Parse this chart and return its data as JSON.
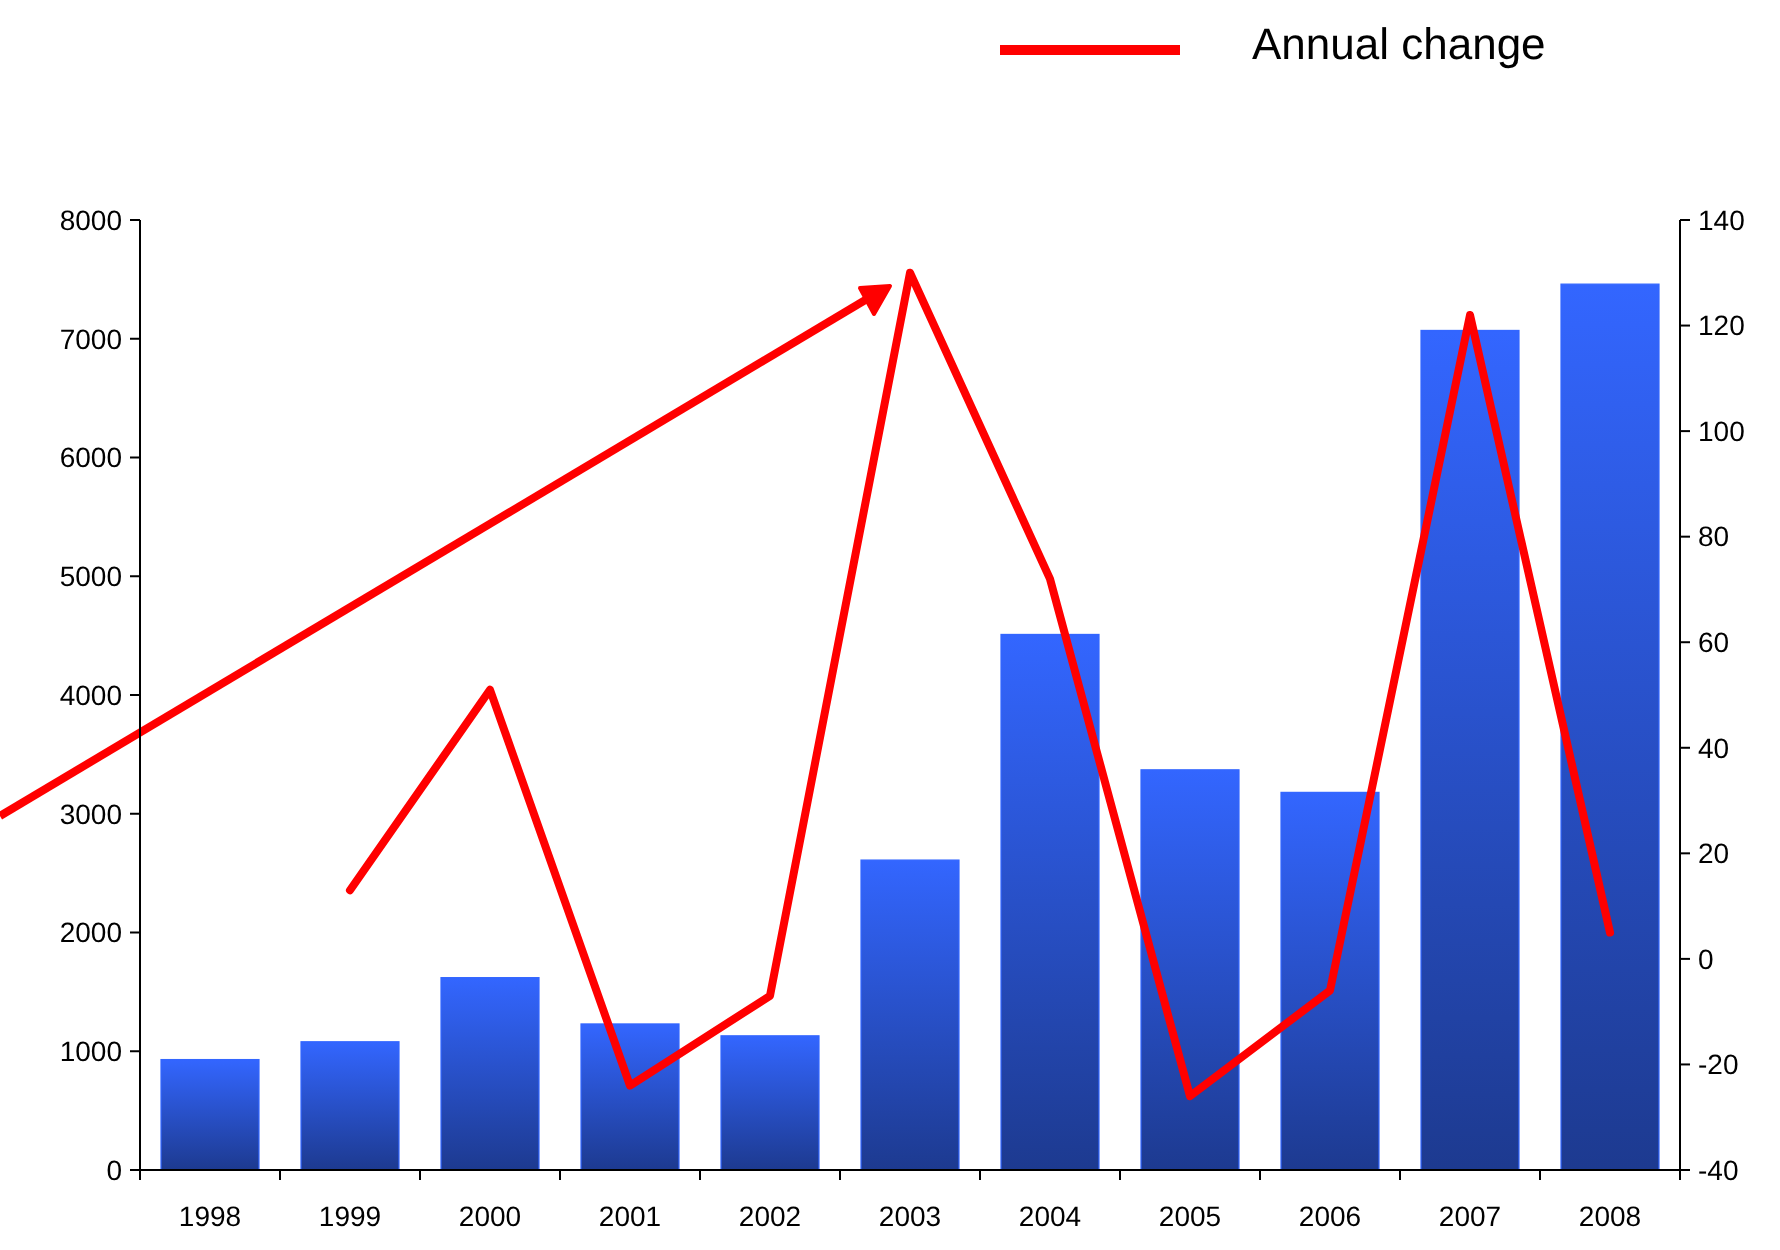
{
  "chart_data": {
    "type": "bar",
    "categories": [
      "1998",
      "1999",
      "2000",
      "2001",
      "2002",
      "2003",
      "2004",
      "2005",
      "2006",
      "2007",
      "2008"
    ],
    "series": [
      {
        "color": "#3366ff",
        "values": [
          930,
          1080,
          1620,
          1230,
          1130,
          2610,
          4510,
          3370,
          3180,
          7070,
          7460
        ]
      },
      {
        "type": "line",
        "name": "Annual change",
        "color": "#ff0000",
        "axis": "y2",
        "values": [
          null,
          13,
          51,
          -24,
          -7,
          130,
          72,
          -26,
          -6,
          122,
          5
        ]
      }
    ],
    "ylim": [
      0,
      8000
    ],
    "yticks": [
      0,
      1000,
      2000,
      3000,
      4000,
      5000,
      6000,
      7000,
      8000
    ],
    "y2lim": [
      -40,
      140
    ],
    "y2ticks": [
      -40,
      -20,
      0,
      20,
      40,
      60,
      80,
      100,
      120,
      140
    ],
    "legend": "top right",
    "grid": false
  }
}
